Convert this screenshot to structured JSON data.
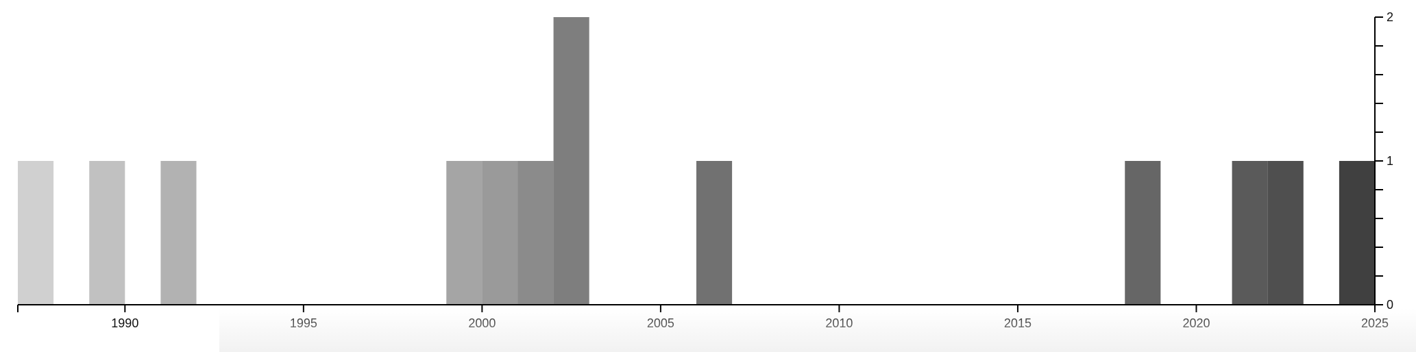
{
  "chart_data": {
    "type": "bar",
    "title": "",
    "xlabel": "",
    "ylabel": "",
    "x": [
      1987,
      1989,
      1991,
      1999,
      2000,
      2001,
      2002,
      2006,
      2018,
      2021,
      2022,
      2024
    ],
    "values": [
      1,
      1,
      1,
      1,
      1,
      1,
      2,
      1,
      1,
      1,
      1,
      1
    ],
    "xlim": [
      1987,
      2025
    ],
    "ylim": [
      0,
      2
    ],
    "x_ticks": [
      "1990",
      "1995",
      "2000",
      "2005",
      "2010",
      "2015",
      "2020",
      "2025"
    ],
    "y_ticks": [
      "0",
      "1",
      "2"
    ],
    "y_axis_position": "right",
    "grid": false,
    "colors": [
      "#d0d0d0",
      "#c1c1c1",
      "#b2b2b2",
      "#a5a5a5",
      "#9a9a9a",
      "#8b8b8b",
      "#7e7e7e",
      "#717171",
      "#666666",
      "#5a5a5a",
      "#4f4f4f",
      "#404040"
    ]
  }
}
